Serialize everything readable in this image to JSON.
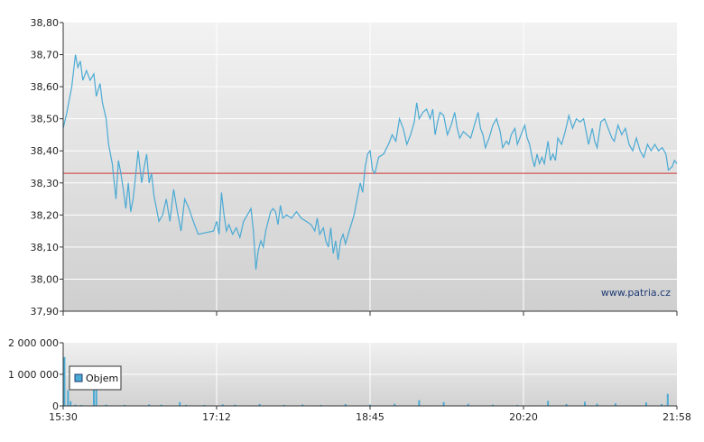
{
  "watermark": "www.patria.cz",
  "chart_data": [
    {
      "type": "line",
      "title": "",
      "xlabel": "",
      "ylabel": "",
      "ylim": [
        37.9,
        38.8
      ],
      "y_ticks": [
        "38,80",
        "38,70",
        "38,60",
        "38,50",
        "38,40",
        "38,30",
        "38,20",
        "38,10",
        "38,00",
        "37,90"
      ],
      "x_ticks": [
        "15:30",
        "17:12",
        "18:45",
        "20:20",
        "21:58"
      ],
      "x_tick_positions": [
        0,
        0.25,
        0.5,
        0.75,
        1.0
      ],
      "grid": true,
      "reference_line": {
        "value": 38.33,
        "color": "#cc3333"
      },
      "series": [
        {
          "color": "#4aaad4",
          "points": [
            [
              0.0,
              38.47
            ],
            [
              0.006,
              38.52
            ],
            [
              0.014,
              38.6
            ],
            [
              0.02,
              38.7
            ],
            [
              0.024,
              38.66
            ],
            [
              0.028,
              38.68
            ],
            [
              0.032,
              38.62
            ],
            [
              0.038,
              38.65
            ],
            [
              0.044,
              38.62
            ],
            [
              0.05,
              38.64
            ],
            [
              0.054,
              38.57
            ],
            [
              0.06,
              38.61
            ],
            [
              0.064,
              38.55
            ],
            [
              0.07,
              38.5
            ],
            [
              0.074,
              38.42
            ],
            [
              0.08,
              38.36
            ],
            [
              0.086,
              38.25
            ],
            [
              0.09,
              38.37
            ],
            [
              0.094,
              38.33
            ],
            [
              0.098,
              38.28
            ],
            [
              0.102,
              38.22
            ],
            [
              0.106,
              38.3
            ],
            [
              0.11,
              38.21
            ],
            [
              0.114,
              38.25
            ],
            [
              0.118,
              38.32
            ],
            [
              0.122,
              38.4
            ],
            [
              0.128,
              38.3
            ],
            [
              0.132,
              38.35
            ],
            [
              0.136,
              38.39
            ],
            [
              0.14,
              38.3
            ],
            [
              0.144,
              38.33
            ],
            [
              0.148,
              38.26
            ],
            [
              0.152,
              38.22
            ],
            [
              0.156,
              38.18
            ],
            [
              0.162,
              38.2
            ],
            [
              0.168,
              38.25
            ],
            [
              0.174,
              38.18
            ],
            [
              0.18,
              38.28
            ],
            [
              0.186,
              38.21
            ],
            [
              0.192,
              38.15
            ],
            [
              0.198,
              38.25
            ],
            [
              0.205,
              38.22
            ],
            [
              0.212,
              38.18
            ],
            [
              0.22,
              38.14
            ],
            [
              0.245,
              38.15
            ],
            [
              0.25,
              38.18
            ],
            [
              0.254,
              38.14
            ],
            [
              0.258,
              38.27
            ],
            [
              0.262,
              38.2
            ],
            [
              0.266,
              38.15
            ],
            [
              0.27,
              38.17
            ],
            [
              0.276,
              38.14
            ],
            [
              0.282,
              38.16
            ],
            [
              0.288,
              38.13
            ],
            [
              0.294,
              38.18
            ],
            [
              0.3,
              38.2
            ],
            [
              0.306,
              38.22
            ],
            [
              0.31,
              38.15
            ],
            [
              0.314,
              38.03
            ],
            [
              0.318,
              38.09
            ],
            [
              0.322,
              38.12
            ],
            [
              0.326,
              38.1
            ],
            [
              0.33,
              38.15
            ],
            [
              0.334,
              38.18
            ],
            [
              0.338,
              38.21
            ],
            [
              0.342,
              38.22
            ],
            [
              0.346,
              38.21
            ],
            [
              0.35,
              38.17
            ],
            [
              0.354,
              38.23
            ],
            [
              0.358,
              38.19
            ],
            [
              0.364,
              38.2
            ],
            [
              0.372,
              38.19
            ],
            [
              0.38,
              38.21
            ],
            [
              0.388,
              38.19
            ],
            [
              0.396,
              38.18
            ],
            [
              0.404,
              38.17
            ],
            [
              0.41,
              38.15
            ],
            [
              0.414,
              38.19
            ],
            [
              0.418,
              38.14
            ],
            [
              0.424,
              38.16
            ],
            [
              0.428,
              38.12
            ],
            [
              0.432,
              38.1
            ],
            [
              0.436,
              38.16
            ],
            [
              0.44,
              38.08
            ],
            [
              0.444,
              38.12
            ],
            [
              0.448,
              38.06
            ],
            [
              0.452,
              38.12
            ],
            [
              0.456,
              38.14
            ],
            [
              0.46,
              38.11
            ],
            [
              0.466,
              38.15
            ],
            [
              0.474,
              38.2
            ],
            [
              0.48,
              38.26
            ],
            [
              0.484,
              38.3
            ],
            [
              0.488,
              38.27
            ],
            [
              0.492,
              38.35
            ],
            [
              0.496,
              38.39
            ],
            [
              0.5,
              38.4
            ],
            [
              0.504,
              38.34
            ],
            [
              0.508,
              38.33
            ],
            [
              0.514,
              38.38
            ],
            [
              0.522,
              38.39
            ],
            [
              0.53,
              38.42
            ],
            [
              0.536,
              38.45
            ],
            [
              0.542,
              38.43
            ],
            [
              0.548,
              38.5
            ],
            [
              0.554,
              38.47
            ],
            [
              0.56,
              38.42
            ],
            [
              0.566,
              38.45
            ],
            [
              0.572,
              38.49
            ],
            [
              0.576,
              38.55
            ],
            [
              0.58,
              38.5
            ],
            [
              0.586,
              38.52
            ],
            [
              0.592,
              38.53
            ],
            [
              0.598,
              38.5
            ],
            [
              0.602,
              38.53
            ],
            [
              0.606,
              38.45
            ],
            [
              0.61,
              38.49
            ],
            [
              0.614,
              38.52
            ],
            [
              0.62,
              38.51
            ],
            [
              0.626,
              38.45
            ],
            [
              0.632,
              38.48
            ],
            [
              0.638,
              38.52
            ],
            [
              0.642,
              38.47
            ],
            [
              0.646,
              38.44
            ],
            [
              0.652,
              38.46
            ],
            [
              0.658,
              38.45
            ],
            [
              0.664,
              38.44
            ],
            [
              0.67,
              38.48
            ],
            [
              0.676,
              38.52
            ],
            [
              0.68,
              38.47
            ],
            [
              0.684,
              38.45
            ],
            [
              0.688,
              38.41
            ],
            [
              0.694,
              38.44
            ],
            [
              0.7,
              38.48
            ],
            [
              0.706,
              38.5
            ],
            [
              0.712,
              38.46
            ],
            [
              0.716,
              38.41
            ],
            [
              0.722,
              38.43
            ],
            [
              0.726,
              38.42
            ],
            [
              0.73,
              38.45
            ],
            [
              0.736,
              38.47
            ],
            [
              0.74,
              38.42
            ],
            [
              0.746,
              38.45
            ],
            [
              0.752,
              38.48
            ],
            [
              0.756,
              38.44
            ],
            [
              0.76,
              38.42
            ],
            [
              0.764,
              38.38
            ],
            [
              0.768,
              38.35
            ],
            [
              0.772,
              38.39
            ],
            [
              0.776,
              38.36
            ],
            [
              0.78,
              38.38
            ],
            [
              0.784,
              38.36
            ],
            [
              0.79,
              38.43
            ],
            [
              0.794,
              38.37
            ],
            [
              0.798,
              38.39
            ],
            [
              0.802,
              38.37
            ],
            [
              0.806,
              38.44
            ],
            [
              0.812,
              38.42
            ],
            [
              0.818,
              38.46
            ],
            [
              0.824,
              38.51
            ],
            [
              0.83,
              38.47
            ],
            [
              0.836,
              38.5
            ],
            [
              0.842,
              38.49
            ],
            [
              0.848,
              38.5
            ],
            [
              0.852,
              38.46
            ],
            [
              0.856,
              38.42
            ],
            [
              0.862,
              38.47
            ],
            [
              0.866,
              38.43
            ],
            [
              0.87,
              38.41
            ],
            [
              0.876,
              38.49
            ],
            [
              0.882,
              38.5
            ],
            [
              0.888,
              38.47
            ],
            [
              0.894,
              38.44
            ],
            [
              0.898,
              38.43
            ],
            [
              0.904,
              38.48
            ],
            [
              0.91,
              38.45
            ],
            [
              0.916,
              38.47
            ],
            [
              0.922,
              38.42
            ],
            [
              0.928,
              38.4
            ],
            [
              0.934,
              38.44
            ],
            [
              0.94,
              38.4
            ],
            [
              0.946,
              38.38
            ],
            [
              0.952,
              38.42
            ],
            [
              0.958,
              38.4
            ],
            [
              0.964,
              38.42
            ],
            [
              0.97,
              38.4
            ],
            [
              0.976,
              38.41
            ],
            [
              0.982,
              38.39
            ],
            [
              0.986,
              38.34
            ],
            [
              0.992,
              38.35
            ],
            [
              0.996,
              38.37
            ],
            [
              1.0,
              38.36
            ]
          ]
        }
      ]
    },
    {
      "type": "bar",
      "title": "",
      "ylim": [
        0,
        2000000
      ],
      "y_ticks": [
        "2 000 000",
        "1 000 000",
        "0"
      ],
      "legend": [
        "Objem"
      ],
      "legend_position": "top-left",
      "grid": true,
      "series": [
        {
          "name": "Objem",
          "color": "#4aaad4",
          "bars": [
            [
              0.002,
              1550000
            ],
            [
              0.008,
              500000
            ],
            [
              0.012,
              150000
            ],
            [
              0.02,
              40000
            ],
            [
              0.03,
              30000
            ],
            [
              0.05,
              650000
            ],
            [
              0.054,
              650000
            ],
            [
              0.07,
              40000
            ],
            [
              0.1,
              35000
            ],
            [
              0.14,
              50000
            ],
            [
              0.16,
              40000
            ],
            [
              0.19,
              120000
            ],
            [
              0.2,
              35000
            ],
            [
              0.23,
              30000
            ],
            [
              0.26,
              50000
            ],
            [
              0.28,
              40000
            ],
            [
              0.32,
              60000
            ],
            [
              0.36,
              35000
            ],
            [
              0.39,
              45000
            ],
            [
              0.42,
              30000
            ],
            [
              0.46,
              60000
            ],
            [
              0.5,
              40000
            ],
            [
              0.54,
              70000
            ],
            [
              0.58,
              180000
            ],
            [
              0.62,
              120000
            ],
            [
              0.66,
              70000
            ],
            [
              0.7,
              40000
            ],
            [
              0.74,
              30000
            ],
            [
              0.79,
              160000
            ],
            [
              0.82,
              60000
            ],
            [
              0.85,
              130000
            ],
            [
              0.87,
              70000
            ],
            [
              0.9,
              80000
            ],
            [
              0.95,
              110000
            ],
            [
              0.975,
              60000
            ],
            [
              0.985,
              380000
            ]
          ]
        }
      ]
    }
  ]
}
